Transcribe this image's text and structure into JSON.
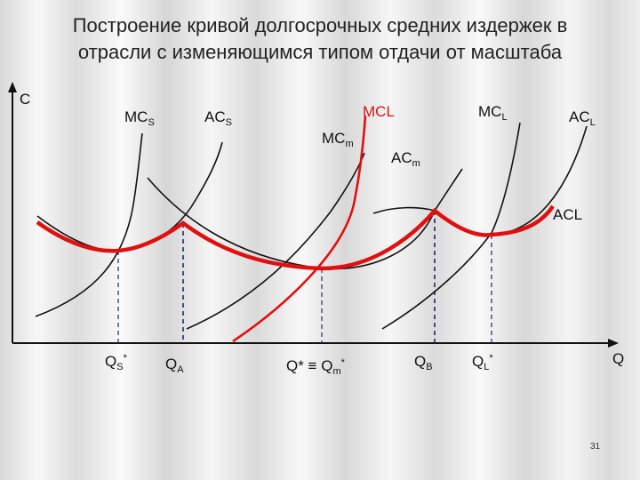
{
  "title": {
    "line1": "Построение кривой  долгосрочных средних издержек в",
    "line2": "отрасли с изменяющимся типом отдачи от масштаба"
  },
  "axes": {
    "y_label": "C",
    "x_label": "Q"
  },
  "curve_labels": {
    "mcs": {
      "base": "MC",
      "sub": "S"
    },
    "acs": {
      "base": "AC",
      "sub": "S"
    },
    "mcm": {
      "base": "MC",
      "sub": "m"
    },
    "acm": {
      "base": "AC",
      "sub": "m"
    },
    "mcl_red": {
      "base": "MCL",
      "sub": ""
    },
    "mcl": {
      "base": "MC",
      "sub": "L"
    },
    "acl": {
      "base": "AC",
      "sub": "L"
    },
    "acl_red": {
      "base": "ACL",
      "sub": ""
    }
  },
  "q_labels": {
    "qs": {
      "base": "Q",
      "sub": "S",
      "sup": "*"
    },
    "qa": {
      "base": "Q",
      "sub": "A"
    },
    "qm_a": "Q* ≡ Q",
    "qm_sub": "m",
    "qm_sup": "*",
    "qb": {
      "base": "Q",
      "sub": "B"
    },
    "ql": {
      "base": "Q",
      "sub": "L",
      "sup": "*"
    }
  },
  "slide_number": "31",
  "colors": {
    "black_curve": "#111111",
    "red_curve": "#e01010",
    "dash": "#1a2a6a"
  }
}
